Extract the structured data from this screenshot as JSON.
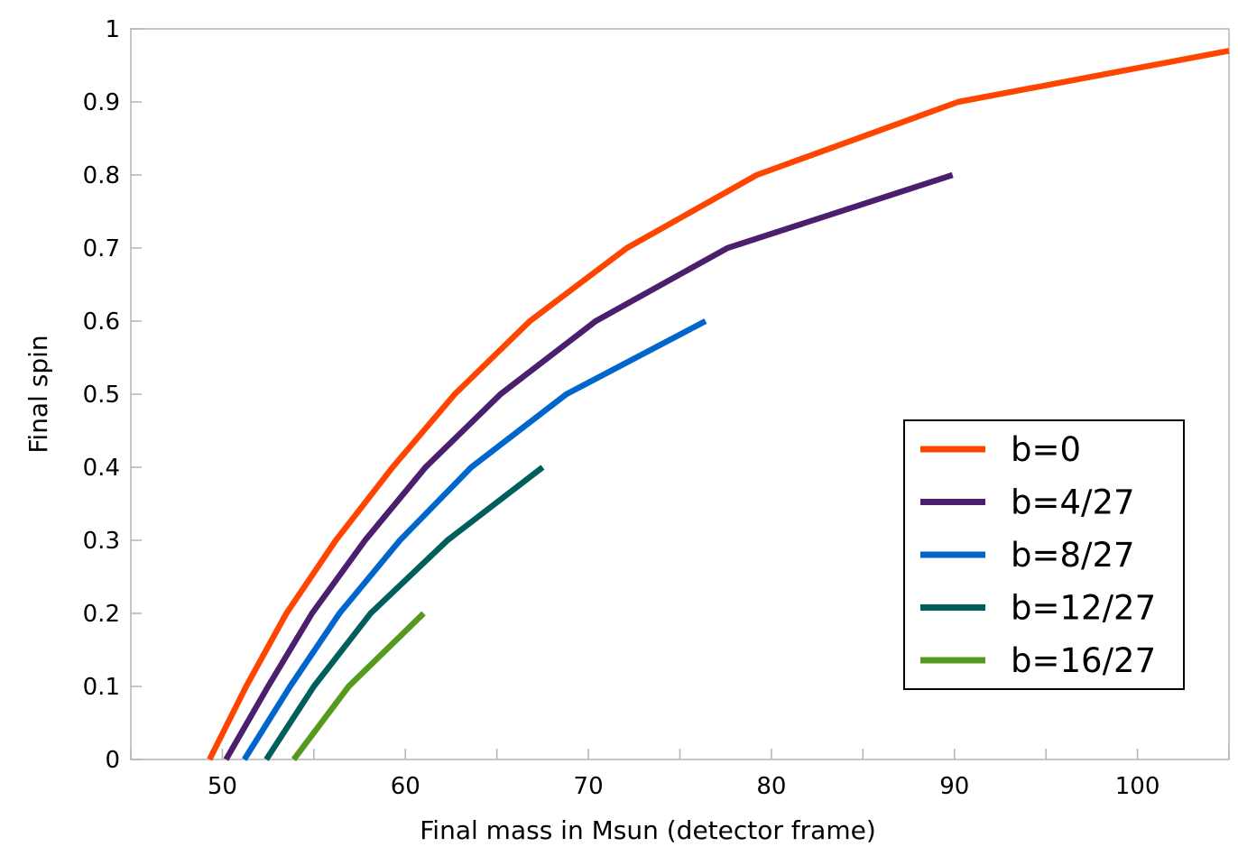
{
  "chart_data": {
    "type": "line",
    "xlabel": "Final mass in Msun (detector frame)",
    "ylabel": "Final spin",
    "xlim": [
      45,
      105
    ],
    "ylim": [
      0,
      1
    ],
    "x_ticks": [
      50,
      60,
      70,
      80,
      90,
      100
    ],
    "y_ticks": [
      0,
      0.1,
      0.2,
      0.3,
      0.4,
      0.5,
      0.6,
      0.7,
      0.8,
      0.9,
      1
    ],
    "grid": false,
    "legend_position": "bottom-right",
    "series": [
      {
        "name": "b=0",
        "color": "#ff4500",
        "points": [
          [
            49.3,
            0
          ],
          [
            51.3,
            0.1
          ],
          [
            53.5,
            0.2
          ],
          [
            56.2,
            0.3
          ],
          [
            59.3,
            0.4
          ],
          [
            62.7,
            0.5
          ],
          [
            66.8,
            0.6
          ],
          [
            72.1,
            0.7
          ],
          [
            79.2,
            0.8
          ],
          [
            90.2,
            0.9
          ],
          [
            105,
            0.97
          ]
        ]
      },
      {
        "name": "b=4/27",
        "color": "#4b1e6e",
        "points": [
          [
            50.2,
            0
          ],
          [
            52.5,
            0.1
          ],
          [
            54.9,
            0.2
          ],
          [
            57.8,
            0.3
          ],
          [
            61.1,
            0.4
          ],
          [
            65.2,
            0.5
          ],
          [
            70.4,
            0.6
          ],
          [
            77.6,
            0.7
          ],
          [
            89.9,
            0.8
          ]
        ]
      },
      {
        "name": "b=8/27",
        "color": "#0066cc",
        "points": [
          [
            51.2,
            0
          ],
          [
            53.7,
            0.1
          ],
          [
            56.4,
            0.2
          ],
          [
            59.7,
            0.3
          ],
          [
            63.6,
            0.4
          ],
          [
            68.8,
            0.5
          ],
          [
            76.4,
            0.6
          ]
        ]
      },
      {
        "name": "b=12/27",
        "color": "#005f5a",
        "points": [
          [
            52.4,
            0
          ],
          [
            55.0,
            0.1
          ],
          [
            58.1,
            0.2
          ],
          [
            62.3,
            0.3
          ],
          [
            67.5,
            0.4
          ]
        ]
      },
      {
        "name": "b=16/27",
        "color": "#559a1f",
        "points": [
          [
            53.9,
            0
          ],
          [
            56.9,
            0.1
          ],
          [
            61.0,
            0.2
          ]
        ]
      }
    ]
  }
}
